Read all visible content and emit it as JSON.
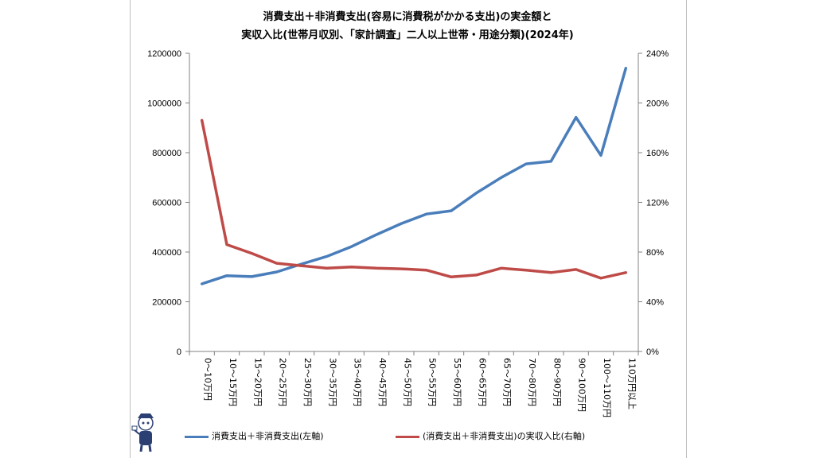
{
  "title_line1": "消費支出＋非消費支出(容易に消費税がかかる支出)の実金額と",
  "title_line2": "実収入比(世帯月収別、「家計調査」二人以上世帯・用途分類)(2024年)",
  "chart_data": {
    "type": "line",
    "title": "消費支出＋非消費支出(容易に消費税がかかる支出)の実金額と実収入比(世帯月収別、「家計調査」二人以上世帯・用途分類)(2024年)",
    "categories": [
      "0～10万円",
      "10～15万円",
      "15～20万円",
      "20～25万円",
      "25～30万円",
      "30～35万円",
      "35～40万円",
      "40～45万円",
      "45～50万円",
      "50～55万円",
      "55～60万円",
      "60～65万円",
      "65～70万円",
      "70～80万円",
      "80～90万円",
      "90～100万円",
      "100～110万円",
      "110万円以上"
    ],
    "series": [
      {
        "name": "消費支出＋非消費支出(左軸)",
        "axis": "left",
        "color": "#4a7ebb",
        "values": [
          272000,
          305000,
          301000,
          320000,
          352000,
          382000,
          422000,
          470000,
          515000,
          553000,
          566000,
          637000,
          700000,
          755000,
          765000,
          942000,
          789000,
          1140000
        ]
      },
      {
        "name": "(消費支出＋非消費支出)の実収入比(右軸)",
        "axis": "right",
        "color": "#be4b48",
        "values": [
          186,
          86,
          79,
          71,
          69,
          67,
          68,
          67,
          66.5,
          65.5,
          60,
          61.5,
          67,
          65.5,
          63.5,
          66,
          59,
          63.5
        ]
      }
    ],
    "y_left": {
      "min": 0,
      "max": 1200000,
      "ticks": [
        "0",
        "200000",
        "400000",
        "600000",
        "800000",
        "1000000",
        "1200000"
      ]
    },
    "y_right": {
      "min": 0,
      "max": 240,
      "ticks": [
        "0%",
        "40%",
        "80%",
        "120%",
        "160%",
        "200%",
        "240%"
      ]
    },
    "grid": false,
    "legend_position": "bottom"
  }
}
